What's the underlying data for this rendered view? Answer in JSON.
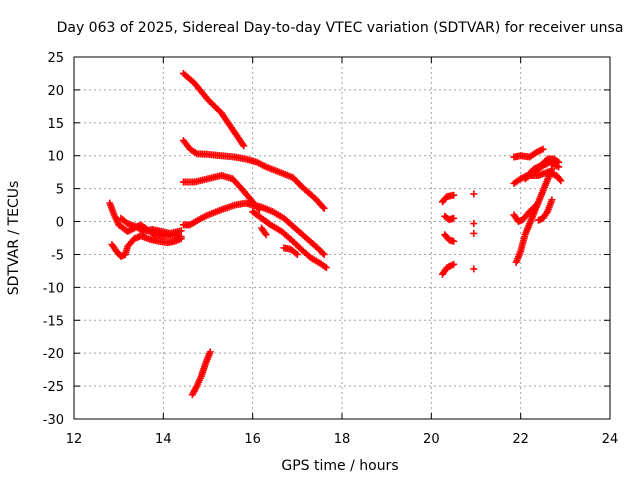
{
  "chart_data": {
    "type": "scatter",
    "title": "Day 063 of 2025, Sidereal Day-to-day VTEC variation (SDTVAR) for receiver unsa",
    "xlabel": "GPS time / hours",
    "ylabel": "SDTVAR / TECUs",
    "xlim": [
      12,
      24
    ],
    "ylim": [
      -30,
      25
    ],
    "xticks": [
      "12",
      "14",
      "16",
      "18",
      "20",
      "22",
      "24"
    ],
    "yticks": [
      "25",
      "20",
      "15",
      "10",
      "5",
      "0",
      "-5",
      "-10",
      "-15",
      "-20",
      "-25",
      "-30"
    ],
    "grid": true,
    "legend": "none",
    "marker": "plus",
    "color": "#ff0000",
    "series": [
      {
        "points": [
          [
            14.45,
            22.5
          ],
          [
            14.7,
            21.0
          ],
          [
            15.0,
            18.5
          ],
          [
            15.3,
            16.5
          ],
          [
            15.55,
            14.0
          ],
          [
            15.8,
            11.5
          ]
        ]
      },
      {
        "points": [
          [
            14.45,
            12.3
          ],
          [
            14.6,
            11.0
          ],
          [
            14.75,
            10.3
          ],
          [
            15.0,
            10.2
          ],
          [
            15.3,
            10.0
          ],
          [
            15.6,
            9.8
          ],
          [
            15.85,
            9.5
          ],
          [
            16.1,
            9.0
          ],
          [
            16.3,
            8.3
          ],
          [
            16.6,
            7.5
          ],
          [
            16.9,
            6.7
          ],
          [
            17.1,
            5.3
          ],
          [
            17.4,
            3.5
          ],
          [
            17.6,
            2.0
          ]
        ]
      },
      {
        "points": [
          [
            14.45,
            6.0
          ],
          [
            14.7,
            6.0
          ],
          [
            15.0,
            6.5
          ],
          [
            15.3,
            7.0
          ],
          [
            15.55,
            6.5
          ],
          [
            15.75,
            5.0
          ],
          [
            16.0,
            3.0
          ],
          [
            16.15,
            1.8
          ]
        ]
      },
      {
        "points": [
          [
            14.45,
            -0.5
          ],
          [
            14.6,
            -0.5
          ],
          [
            14.8,
            0.3
          ],
          [
            15.0,
            1.0
          ],
          [
            15.3,
            1.8
          ],
          [
            15.6,
            2.5
          ],
          [
            15.85,
            2.8
          ],
          [
            16.0,
            2.5
          ],
          [
            16.2,
            2.2
          ],
          [
            16.45,
            1.5
          ],
          [
            16.7,
            0.5
          ],
          [
            16.95,
            -1.0
          ],
          [
            17.2,
            -2.5
          ],
          [
            17.45,
            -4.0
          ],
          [
            17.6,
            -5.0
          ]
        ]
      },
      {
        "points": [
          [
            16.0,
            1.5
          ],
          [
            16.2,
            0.5
          ],
          [
            16.4,
            -0.5
          ],
          [
            16.65,
            -1.5
          ],
          [
            16.9,
            -3.0
          ],
          [
            17.1,
            -4.3
          ],
          [
            17.3,
            -5.5
          ],
          [
            17.5,
            -6.3
          ],
          [
            17.65,
            -7.0
          ]
        ]
      },
      {
        "points": [
          [
            16.2,
            -1.0
          ],
          [
            16.3,
            -2.0
          ]
        ]
      },
      {
        "points": [
          [
            16.7,
            -4.0
          ],
          [
            16.85,
            -4.2
          ],
          [
            17.0,
            -5.0
          ]
        ]
      },
      {
        "points": [
          [
            14.65,
            -26.3
          ],
          [
            14.75,
            -25.0
          ],
          [
            14.85,
            -23.5
          ],
          [
            14.95,
            -21.5
          ],
          [
            15.05,
            -19.8
          ]
        ]
      },
      {
        "points": [
          [
            12.8,
            2.8
          ],
          [
            12.9,
            1.0
          ],
          [
            13.0,
            -0.5
          ],
          [
            13.1,
            -1.0
          ],
          [
            13.2,
            -1.5
          ],
          [
            13.35,
            -1.0
          ],
          [
            13.5,
            -0.5
          ],
          [
            13.65,
            -1.3
          ],
          [
            13.8,
            -2.0
          ],
          [
            14.0,
            -2.2
          ],
          [
            14.2,
            -2.0
          ],
          [
            14.4,
            -2.3
          ]
        ]
      },
      {
        "points": [
          [
            12.85,
            -3.5
          ],
          [
            12.95,
            -4.5
          ],
          [
            13.05,
            -5.3
          ],
          [
            13.15,
            -5.0
          ],
          [
            13.2,
            -3.8
          ],
          [
            13.35,
            -2.6
          ],
          [
            13.5,
            -2.2
          ],
          [
            13.7,
            -2.7
          ],
          [
            13.9,
            -3.0
          ],
          [
            14.1,
            -3.2
          ],
          [
            14.25,
            -3.0
          ],
          [
            14.4,
            -2.6
          ]
        ]
      },
      {
        "points": [
          [
            13.05,
            0.5
          ],
          [
            13.2,
            -0.3
          ],
          [
            13.4,
            -0.8
          ],
          [
            13.55,
            -1.5
          ],
          [
            13.75,
            -1.2
          ],
          [
            13.95,
            -1.5
          ],
          [
            14.15,
            -1.8
          ],
          [
            14.4,
            -1.4
          ]
        ]
      },
      {
        "points": [
          [
            20.25,
            -8.0
          ],
          [
            20.35,
            -7.0
          ],
          [
            20.5,
            -6.5
          ]
        ]
      },
      {
        "points": [
          [
            20.3,
            -2.0
          ],
          [
            20.4,
            -2.8
          ],
          [
            20.5,
            -3.0
          ]
        ]
      },
      {
        "points": [
          [
            20.3,
            0.8
          ],
          [
            20.4,
            0.3
          ],
          [
            20.5,
            0.5
          ]
        ]
      },
      {
        "points": [
          [
            20.25,
            3.0
          ],
          [
            20.35,
            3.8
          ],
          [
            20.5,
            4.0
          ]
        ]
      },
      {
        "points": [
          [
            20.95,
            4.2
          ]
        ]
      },
      {
        "points": [
          [
            20.95,
            -0.3
          ]
        ]
      },
      {
        "points": [
          [
            20.95,
            -1.8
          ]
        ]
      },
      {
        "points": [
          [
            20.95,
            -7.2
          ]
        ]
      },
      {
        "points": [
          [
            21.85,
            9.8
          ],
          [
            22.0,
            10.0
          ],
          [
            22.2,
            9.8
          ],
          [
            22.35,
            10.5
          ],
          [
            22.5,
            11.0
          ]
        ]
      },
      {
        "points": [
          [
            21.85,
            5.8
          ],
          [
            22.0,
            6.5
          ],
          [
            22.15,
            7.0
          ],
          [
            22.3,
            8.0
          ],
          [
            22.45,
            8.5
          ],
          [
            22.6,
            9.5
          ],
          [
            22.75,
            9.5
          ],
          [
            22.85,
            9.0
          ]
        ]
      },
      {
        "points": [
          [
            22.1,
            6.5
          ],
          [
            22.3,
            7.5
          ],
          [
            22.5,
            8.5
          ],
          [
            22.65,
            9.0
          ],
          [
            22.85,
            8.3
          ]
        ]
      },
      {
        "points": [
          [
            22.2,
            7.0
          ],
          [
            22.4,
            7.0
          ],
          [
            22.6,
            7.5
          ],
          [
            22.8,
            7.0
          ],
          [
            22.9,
            6.2
          ]
        ]
      },
      {
        "points": [
          [
            21.9,
            -6.2
          ],
          [
            22.0,
            -4.5
          ],
          [
            22.1,
            -2.0
          ],
          [
            22.25,
            0.5
          ],
          [
            22.4,
            3.0
          ],
          [
            22.55,
            5.5
          ],
          [
            22.7,
            8.0
          ]
        ]
      },
      {
        "points": [
          [
            21.85,
            1.0
          ],
          [
            21.95,
            0.0
          ],
          [
            22.05,
            0.3
          ],
          [
            22.2,
            1.5
          ],
          [
            22.35,
            2.5
          ]
        ]
      },
      {
        "points": [
          [
            22.4,
            0.2
          ],
          [
            22.5,
            0.5
          ],
          [
            22.6,
            1.5
          ],
          [
            22.7,
            3.3
          ]
        ]
      }
    ]
  }
}
